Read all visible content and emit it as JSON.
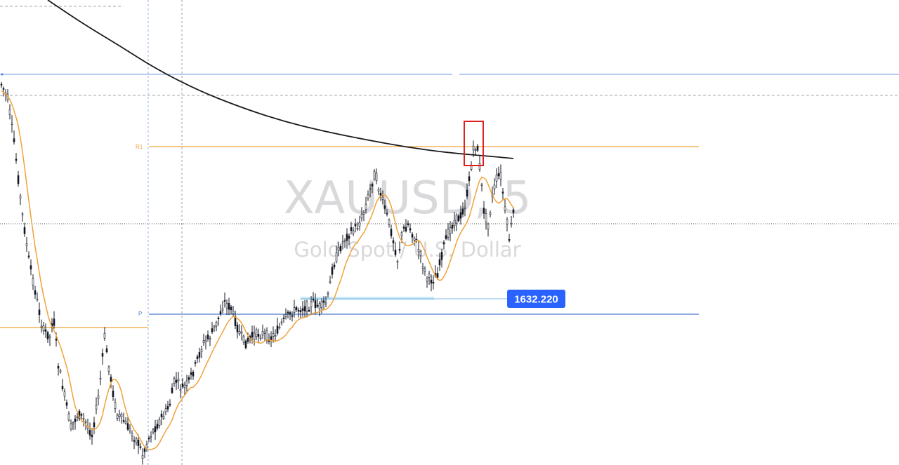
{
  "chart_data": {
    "type": "candlestick",
    "symbol": "XAUUSD, 5",
    "description": "Gold Spot / U.S. Dollar",
    "price_tag": "1632.220",
    "levels": [
      {
        "label": "R1",
        "color": "#f0a23a"
      },
      {
        "label": "P",
        "color": "#4a7bd0"
      }
    ],
    "moving_averages": [
      {
        "color": "#1a1a1a"
      },
      {
        "color": "#f0a23a"
      }
    ],
    "colors": {
      "candles": "#131722",
      "price_tag_bg": "#2962ff",
      "highlight_box": "#e02020",
      "cursor_line": "#555555"
    }
  }
}
